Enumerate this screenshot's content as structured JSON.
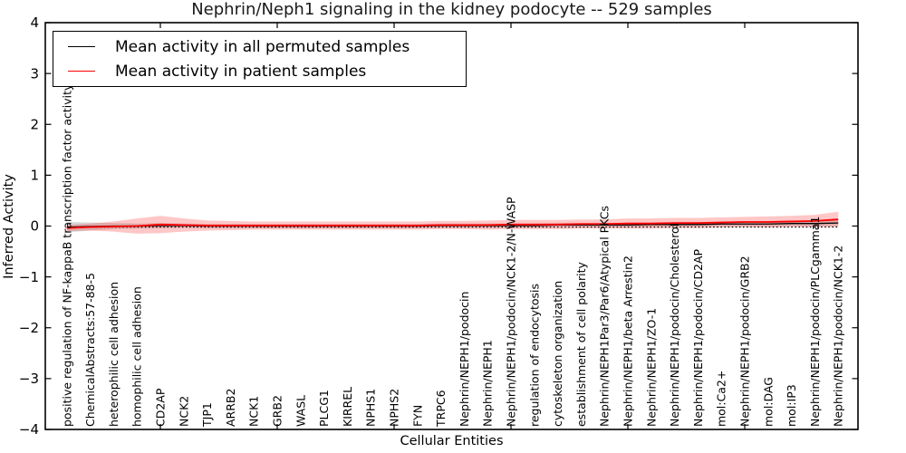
{
  "chart_data": {
    "type": "line",
    "title": "Nephrin/Neph1 signaling in the kidney podocyte -- 529 samples",
    "xlabel": "Cellular Entities",
    "ylabel": "Inferred Activity",
    "ylim": [
      -4,
      4
    ],
    "ytick_labels": [
      "4",
      "3",
      "2",
      "1",
      "0",
      "−1",
      "−2",
      "−3",
      "−4"
    ],
    "ytick_values": [
      4,
      3,
      2,
      1,
      0,
      -1,
      -2,
      -3,
      -4
    ],
    "x_major_tick_indices": [
      4,
      9,
      14,
      19,
      24,
      29
    ],
    "grid": false,
    "legend_position": "upper left",
    "categories": [
      "positive regulation of NF-kappaB transcription factor activity",
      "ChemicalAbstracts:57-88-5",
      "heterophilic cell adhesion",
      "homophilic cell adhesion",
      "CD2AP",
      "NCK2",
      "TJP1",
      "ARRB2",
      "NCK1",
      "GRB2",
      "WASL",
      "PLCG1",
      "KIRREL",
      "NPHS1",
      "NPHS2",
      "FYN",
      "TRPC6",
      "Nephrin/NEPH1/podocin",
      "Nephrin/NEPH1",
      "Nephrin/NEPH1/podocin/NCK1-2/N-WASP",
      "regulation of endocytosis",
      "cytoskeleton organization",
      "establishment of cell polarity",
      "Nephrin/NEPH1Par3/Par6/Atypical PKCs",
      "Nephrin/NEPH1/beta Arrestin2",
      "Nephrin/NEPH1/ZO-1",
      "Nephrin/NEPH1/podocin/Cholesterol",
      "Nephrin/NEPH1/podocin/CD2AP",
      "mol:Ca2+",
      "Nephrin/NEPH1/podocin/GRB2",
      "mol:DAG",
      "mol:IP3",
      "Nephrin/NEPH1/podocin/PLCgamma1",
      "Nephrin/NEPH1/podocin/NCK1-2"
    ],
    "series": [
      {
        "name": "Mean activity in all permuted samples",
        "color": "#000000",
        "linestyle": "solid",
        "values": [
          -0.02,
          -0.01,
          0.0,
          0.0,
          0.01,
          0.01,
          0.0,
          0.0,
          0.0,
          0.0,
          0.0,
          0.0,
          0.0,
          0.0,
          0.0,
          0.0,
          0.01,
          0.01,
          0.01,
          0.01,
          0.01,
          0.02,
          0.02,
          0.02,
          0.02,
          0.03,
          0.03,
          0.03,
          0.04,
          0.04,
          0.04,
          0.05,
          0.05,
          0.06
        ]
      },
      {
        "name": "Mean activity in patient samples",
        "color": "#ff0000",
        "linestyle": "solid",
        "values": [
          -0.04,
          -0.02,
          -0.01,
          0.0,
          0.03,
          0.02,
          0.01,
          0.01,
          0.01,
          0.01,
          0.01,
          0.01,
          0.01,
          0.01,
          0.01,
          0.01,
          0.02,
          0.02,
          0.02,
          0.03,
          0.03,
          0.03,
          0.04,
          0.04,
          0.05,
          0.05,
          0.06,
          0.06,
          0.07,
          0.08,
          0.08,
          0.09,
          0.1,
          0.13
        ]
      }
    ],
    "reference_line": {
      "value": -0.02,
      "color": "#000000",
      "linestyle": "dotted"
    },
    "bands": [
      {
        "around": "Mean activity in all permuted samples",
        "color": "#999999",
        "opacity": 0.4,
        "half_widths": [
          0.1,
          0.08,
          0.06,
          0.05,
          0.05,
          0.04,
          0.04,
          0.04,
          0.04,
          0.04,
          0.04,
          0.04,
          0.04,
          0.04,
          0.04,
          0.04,
          0.04,
          0.04,
          0.04,
          0.04,
          0.04,
          0.04,
          0.04,
          0.04,
          0.04,
          0.04,
          0.04,
          0.04,
          0.05,
          0.05,
          0.05,
          0.05,
          0.06,
          0.07
        ]
      },
      {
        "around": "Mean activity in patient samples",
        "color": "#ff4444",
        "opacity": 0.3,
        "half_widths": [
          0.06,
          0.07,
          0.1,
          0.15,
          0.17,
          0.13,
          0.1,
          0.09,
          0.08,
          0.08,
          0.08,
          0.08,
          0.08,
          0.08,
          0.08,
          0.08,
          0.08,
          0.08,
          0.09,
          0.09,
          0.09,
          0.09,
          0.09,
          0.09,
          0.1,
          0.1,
          0.1,
          0.1,
          0.1,
          0.1,
          0.11,
          0.11,
          0.12,
          0.15
        ]
      }
    ]
  }
}
